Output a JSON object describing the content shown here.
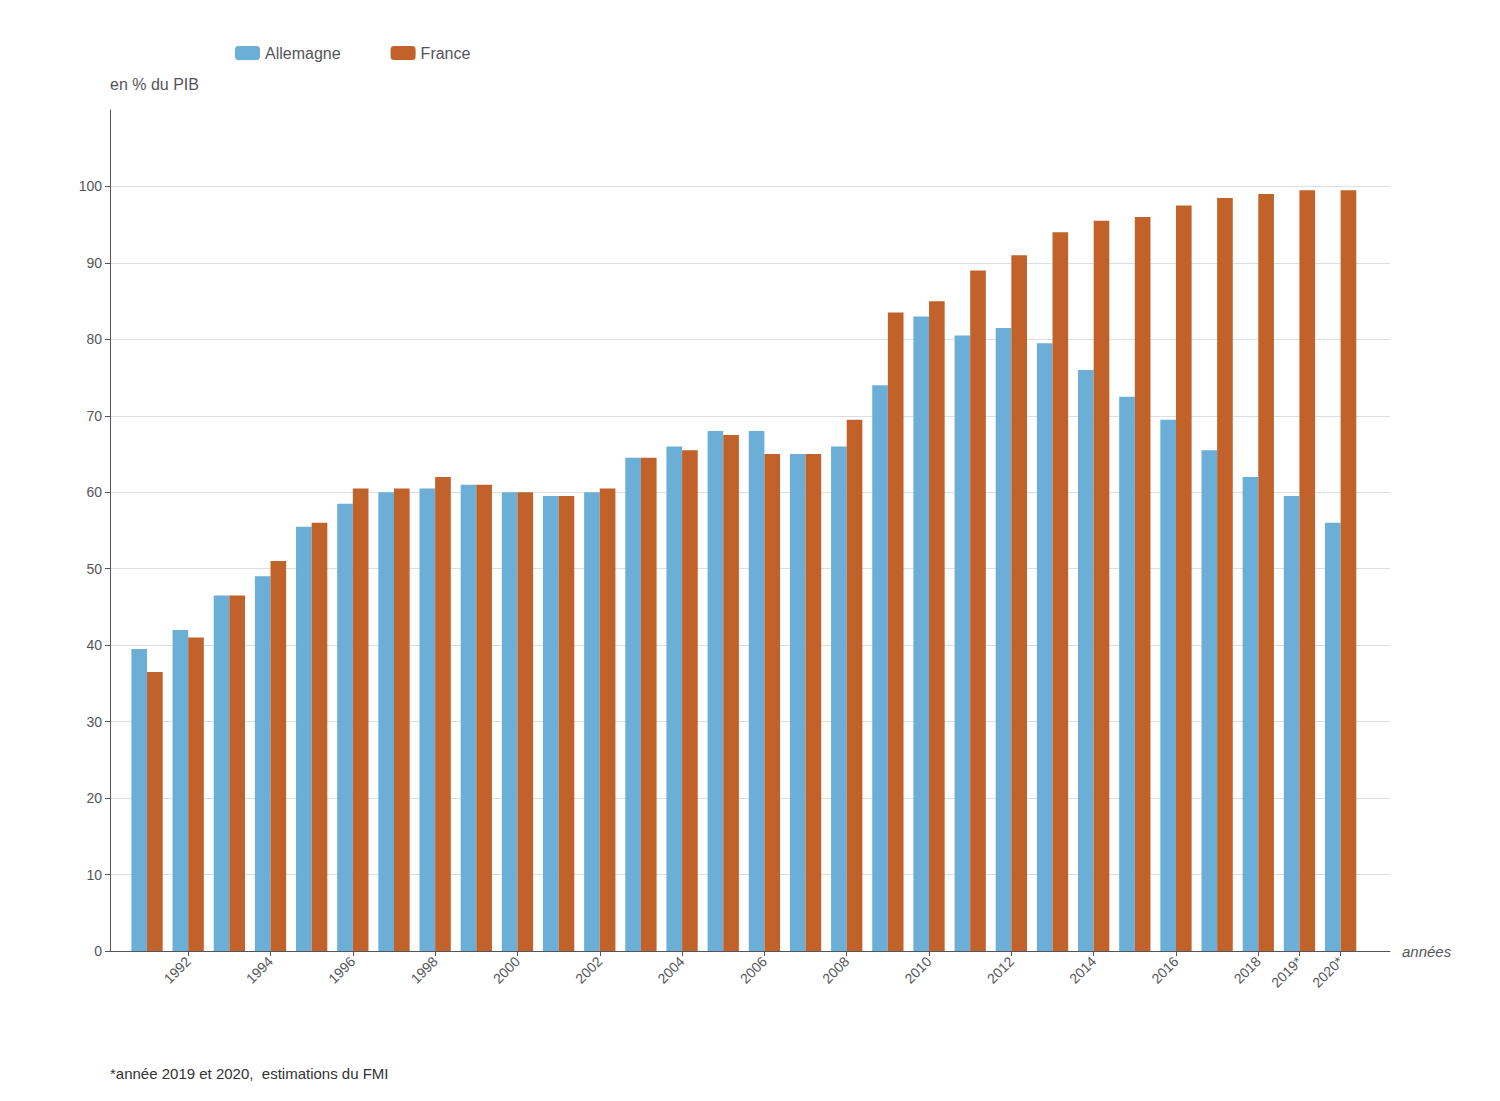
{
  "chart_data": {
    "type": "bar",
    "x": [
      1991,
      1992,
      1993,
      1994,
      1995,
      1996,
      1997,
      1998,
      1999,
      2000,
      2001,
      2002,
      2003,
      2004,
      2005,
      2006,
      2007,
      2008,
      2009,
      2010,
      2011,
      2012,
      2013,
      2014,
      2015,
      2016,
      2017,
      2018,
      2019,
      2020
    ],
    "series": [
      {
        "name": "Allemagne",
        "color": "#6baed6",
        "values": [
          39.5,
          42.0,
          46.5,
          49.0,
          55.5,
          58.5,
          60.0,
          60.5,
          61.0,
          60.0,
          59.5,
          60.0,
          64.5,
          66.0,
          68.0,
          68.0,
          65.0,
          66.0,
          74.0,
          83.0,
          80.5,
          81.5,
          79.5,
          76.0,
          72.5,
          69.5,
          65.5,
          62.0,
          59.5,
          56.0
        ]
      },
      {
        "name": "France",
        "color": "#c1622a",
        "values": [
          36.5,
          41.0,
          46.5,
          51.0,
          56.0,
          60.5,
          60.5,
          62.0,
          61.0,
          60.0,
          59.5,
          60.5,
          64.5,
          65.5,
          67.5,
          65.0,
          65.0,
          69.5,
          83.5,
          85.0,
          89.0,
          91.0,
          94.0,
          95.5,
          96.0,
          97.5,
          98.5,
          99.0,
          99.5,
          99.5
        ]
      }
    ],
    "x_label": "années",
    "y_label": "en % du PIB",
    "annotations": [
      "*année 2019 et 2020,  estimations du FMI"
    ],
    "xlim": [
      1990.1,
      2021.2
    ],
    "xticks": [
      1992,
      1994,
      1996,
      1998,
      2000,
      2002,
      2004,
      2006,
      2008,
      2010,
      2012,
      2014,
      2016,
      2018,
      {
        "value": 2019,
        "label": "2019*"
      },
      {
        "value": 2020,
        "label": "2020*"
      }
    ],
    "ylim": [
      0,
      110
    ],
    "yticks": [
      0,
      10,
      20,
      30,
      40,
      50,
      60,
      70,
      80,
      90,
      100
    ],
    "grid": true,
    "legend": "upper left"
  }
}
